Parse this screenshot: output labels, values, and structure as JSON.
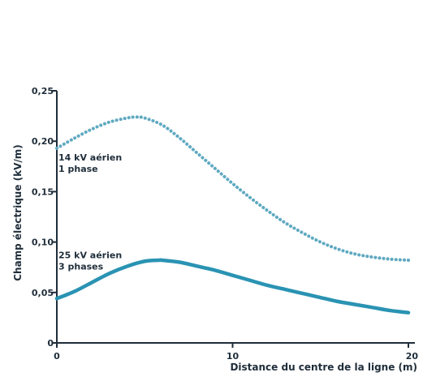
{
  "chart_data": {
    "type": "line",
    "title": "",
    "xlabel": "Distance du centre de la ligne (m)",
    "ylabel": "Champ électrique (kV/m)",
    "xlim": [
      0,
      20
    ],
    "ylim": [
      0,
      0.25
    ],
    "grid": false,
    "x_ticks": [
      {
        "value": 0,
        "label": "0"
      },
      {
        "value": 10,
        "label": "10"
      },
      {
        "value": 20,
        "label": "20"
      }
    ],
    "y_ticks": [
      {
        "value": 0,
        "label": "0"
      },
      {
        "value": 0.05,
        "label": "0,05"
      },
      {
        "value": 0.1,
        "label": "0,10"
      },
      {
        "value": 0.15,
        "label": "0,15"
      },
      {
        "value": 0.2,
        "label": "0,20"
      },
      {
        "value": 0.25,
        "label": "0,25"
      }
    ],
    "series": [
      {
        "label_lines": [
          "14 kV aérien",
          "1 phase"
        ],
        "style": "dotted",
        "color": "#5fa9c1",
        "x": [
          0,
          1,
          2,
          3,
          4,
          4.5,
          5,
          6,
          7,
          8,
          9,
          10,
          11,
          12,
          13,
          14,
          15,
          16,
          17,
          18,
          19,
          20
        ],
        "y": [
          0.193,
          0.203,
          0.212,
          0.219,
          0.223,
          0.224,
          0.223,
          0.216,
          0.203,
          0.188,
          0.173,
          0.158,
          0.144,
          0.131,
          0.119,
          0.109,
          0.1,
          0.093,
          0.088,
          0.085,
          0.083,
          0.082
        ]
      },
      {
        "label_lines": [
          "25 kV aérien",
          "3 phases"
        ],
        "style": "solid",
        "color": "#2a93b3",
        "x": [
          0,
          1,
          2,
          3,
          4,
          5,
          5.8,
          6,
          7,
          8,
          9,
          10,
          11,
          12,
          13,
          14,
          15,
          16,
          17,
          18,
          19,
          20
        ],
        "y": [
          0.044,
          0.051,
          0.06,
          0.069,
          0.076,
          0.081,
          0.082,
          0.082,
          0.08,
          0.076,
          0.072,
          0.067,
          0.062,
          0.057,
          0.053,
          0.049,
          0.045,
          0.041,
          0.038,
          0.035,
          0.032,
          0.03
        ]
      }
    ]
  }
}
